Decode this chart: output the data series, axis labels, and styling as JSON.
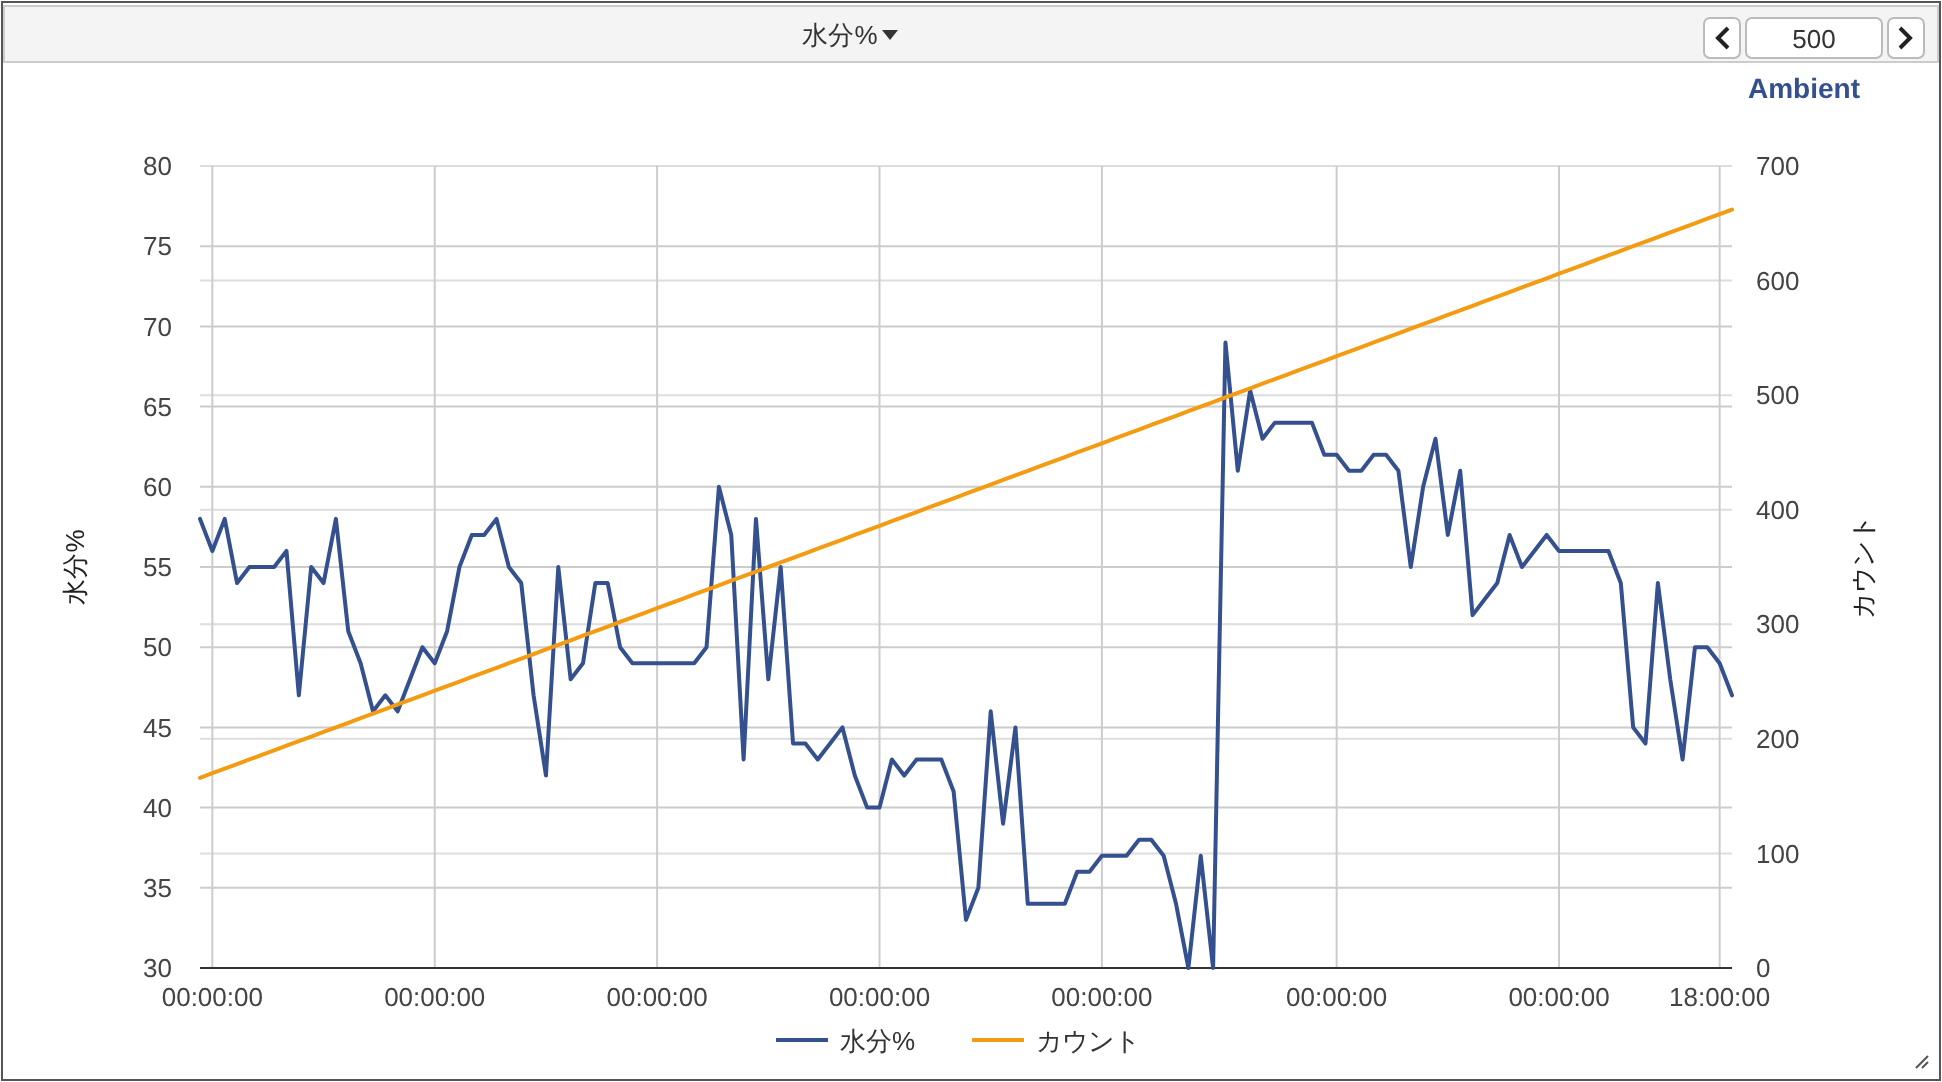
{
  "chart_data": {
    "type": "line",
    "title": "水分%",
    "subtitle": "Ambient",
    "annotations": [
      "500"
    ],
    "ylabel": "水分%",
    "y2label": "カウント",
    "categories": [
      null,
      "00:00:00",
      null,
      null,
      null,
      null,
      null,
      null,
      null,
      null,
      null,
      null,
      null,
      null,
      null,
      null,
      null,
      null,
      null,
      "00:00:00",
      null,
      null,
      null,
      null,
      null,
      null,
      null,
      null,
      null,
      null,
      null,
      null,
      null,
      null,
      null,
      null,
      null,
      "00:00:00",
      null,
      null,
      null,
      null,
      null,
      null,
      null,
      null,
      null,
      null,
      null,
      null,
      null,
      null,
      null,
      null,
      null,
      "00:00:00",
      null,
      null,
      null,
      null,
      null,
      null,
      null,
      null,
      null,
      null,
      null,
      null,
      null,
      null,
      null,
      null,
      null,
      "00:00:00",
      null,
      null,
      null,
      null,
      null,
      null,
      null,
      null,
      null,
      null,
      null,
      null,
      null,
      null,
      null,
      null,
      null,
      null,
      "00:00:00",
      null,
      null,
      null,
      null,
      null,
      null,
      null,
      null,
      null,
      null,
      null,
      null,
      null,
      null,
      null,
      null,
      null,
      "00:00:00",
      null,
      null,
      null,
      null,
      null,
      null,
      null,
      null,
      null,
      null,
      null,
      null,
      "18:00:00",
      null
    ],
    "ylim": [
      30,
      80
    ],
    "yticks": [
      30,
      35,
      40,
      45,
      50,
      55,
      60,
      65,
      70,
      75,
      80
    ],
    "y2lim": [
      0,
      700
    ],
    "y2ticks": [
      0,
      100,
      200,
      300,
      400,
      500,
      600,
      700
    ],
    "grid": true,
    "legend": "bottom",
    "marker": "none",
    "line_style": "solid",
    "series": [
      {
        "name": "水分%",
        "color": "#34508f",
        "values": [
          58,
          56,
          58,
          54,
          55,
          55,
          55,
          56,
          47,
          55,
          54,
          58,
          51,
          49,
          46,
          47,
          46,
          48,
          50,
          49,
          51,
          55,
          57,
          57,
          58,
          55,
          54,
          47,
          42,
          55,
          48,
          49,
          54,
          54,
          50,
          49,
          49,
          49,
          49,
          49,
          49,
          50,
          60,
          57,
          43,
          58,
          48,
          55,
          44,
          44,
          43,
          44,
          45,
          42,
          40,
          40,
          43,
          42,
          43,
          43,
          43,
          41,
          33,
          35,
          46,
          39,
          45,
          34,
          34,
          34,
          34,
          36,
          36,
          37,
          37,
          37,
          38,
          38,
          37,
          34,
          30,
          37,
          30,
          69,
          61,
          66,
          63,
          64,
          64,
          64,
          64,
          62,
          62,
          61,
          61,
          62,
          62,
          61,
          55,
          60,
          63,
          57,
          61,
          52,
          53,
          54,
          57,
          55,
          56,
          57,
          56,
          56,
          56,
          56,
          56,
          54,
          45,
          44,
          54,
          48,
          43,
          50,
          50,
          49,
          47
        ]
      },
      {
        "name": "カウント",
        "color": "#f39c12",
        "axis": "y2",
        "values": [
          166,
          170,
          174,
          178,
          182,
          186,
          190,
          194,
          198,
          202,
          206,
          210,
          214,
          218,
          222,
          226,
          230,
          234,
          238,
          242,
          246,
          250,
          254,
          258,
          262,
          266,
          270,
          274,
          278,
          282,
          286,
          290,
          294,
          298,
          302,
          306,
          310,
          314,
          318,
          322,
          326,
          330,
          334,
          338,
          342,
          346,
          350,
          354,
          358,
          362,
          366,
          370,
          374,
          378,
          382,
          386,
          390,
          394,
          398,
          402,
          406,
          410,
          414,
          418,
          422,
          426,
          430,
          434,
          438,
          442,
          446,
          450,
          454,
          458,
          462,
          466,
          470,
          474,
          478,
          482,
          486,
          490,
          494,
          498,
          502,
          506,
          510,
          514,
          518,
          522,
          526,
          530,
          534,
          538,
          542,
          546,
          550,
          554,
          558,
          562,
          566,
          570,
          574,
          578,
          582,
          586,
          590,
          594,
          598,
          602,
          606,
          610,
          614,
          618,
          622,
          626,
          630,
          634,
          638,
          642,
          646,
          650,
          654,
          658,
          662
        ]
      }
    ]
  }
}
